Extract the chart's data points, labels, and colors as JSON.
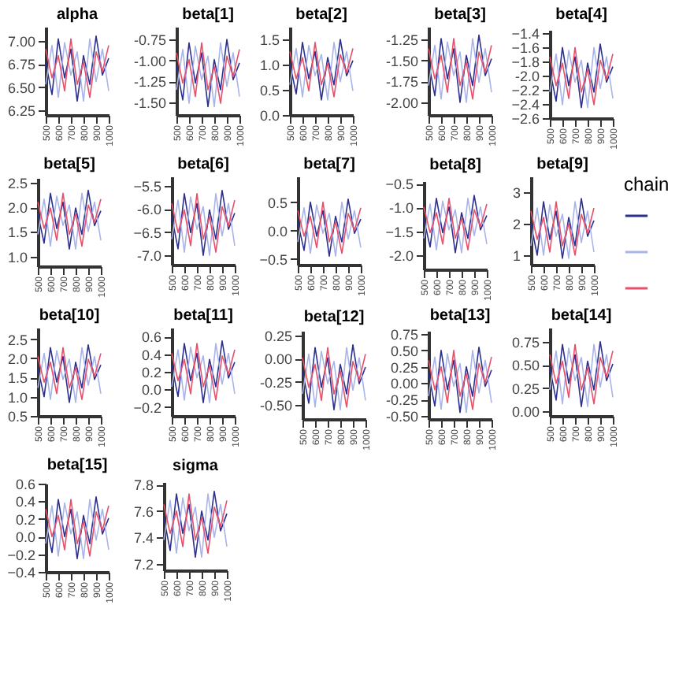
{
  "chart_data": [
    {
      "type": "line",
      "title": "alpha",
      "x": [
        500,
        550,
        600,
        650,
        700,
        750,
        800,
        850,
        900,
        950,
        1000
      ],
      "xlim": [
        500,
        1000
      ],
      "xticks": [
        500,
        600,
        700,
        800,
        900,
        1000
      ],
      "ylim": [
        6.2,
        7.15
      ],
      "yticks": [
        {
          "value": 6.25,
          "label": "6.25"
        },
        {
          "value": 6.5,
          "label": "6.50"
        },
        {
          "value": 6.75,
          "label": "6.75"
        },
        {
          "value": 7,
          "label": "7.00"
        }
      ],
      "series": [
        {
          "color": "#2b2f8f",
          "values": [
            6.77,
            6.42,
            7.02,
            6.6,
            6.91,
            6.35,
            6.84,
            6.53,
            7.05,
            6.63,
            6.81
          ]
        },
        {
          "color": "#a9b4e8",
          "values": [
            6.53,
            6.95,
            6.39,
            6.98,
            6.63,
            6.88,
            6.35,
            7.02,
            6.56,
            6.91,
            6.46
          ]
        },
        {
          "color": "#e8506a",
          "values": [
            6.91,
            6.6,
            6.84,
            6.46,
            7.02,
            6.53,
            6.77,
            6.39,
            6.88,
            6.67,
            6.95
          ]
        }
      ]
    },
    {
      "type": "line",
      "title": "beta[1]",
      "x": [
        500,
        550,
        600,
        650,
        700,
        750,
        800,
        850,
        900,
        950,
        1000
      ],
      "xlim": [
        500,
        1000
      ],
      "xticks": [
        500,
        600,
        700,
        800,
        900,
        1000
      ],
      "ylim": [
        -1.65,
        -0.6
      ],
      "yticks": [
        {
          "value": -1.5,
          "label": "-1.50"
        },
        {
          "value": -1.25,
          "label": "-1.25"
        },
        {
          "value": -1,
          "label": "-1.00"
        },
        {
          "value": -0.75,
          "label": "-0.75"
        }
      ],
      "series": [
        {
          "color": "#2b2f8f",
          "values": [
            -1.07,
            -1.47,
            -0.79,
            -1.27,
            -0.91,
            -1.55,
            -0.99,
            -1.35,
            -0.75,
            -1.23,
            -1.03
          ]
        },
        {
          "color": "#a9b4e8",
          "values": [
            -1.35,
            -0.87,
            -1.51,
            -0.83,
            -1.23,
            -0.95,
            -1.55,
            -0.79,
            -1.31,
            -0.91,
            -1.43
          ]
        },
        {
          "color": "#e8506a",
          "values": [
            -0.91,
            -1.27,
            -0.99,
            -1.43,
            -0.79,
            -1.35,
            -1.07,
            -1.51,
            -0.95,
            -1.19,
            -0.87
          ]
        }
      ]
    },
    {
      "type": "line",
      "title": "beta[2]",
      "x": [
        500,
        550,
        600,
        650,
        700,
        750,
        800,
        850,
        900,
        950,
        1000
      ],
      "xlim": [
        500,
        1000
      ],
      "xticks": [
        500,
        600,
        700,
        800,
        900,
        1000
      ],
      "ylim": [
        0,
        1.75
      ],
      "yticks": [
        {
          "value": 0,
          "label": "0.0"
        },
        {
          "value": 0.5,
          "label": "0.5"
        },
        {
          "value": 1,
          "label": "1.0"
        },
        {
          "value": 1.5,
          "label": "1.5"
        }
      ],
      "series": [
        {
          "color": "#2b2f8f",
          "values": [
            1.02,
            0.42,
            1.44,
            0.72,
            1.26,
            0.3,
            1.14,
            0.6,
            1.5,
            0.78,
            1.08
          ]
        },
        {
          "color": "#a9b4e8",
          "values": [
            0.6,
            1.32,
            0.36,
            1.38,
            0.78,
            1.2,
            0.3,
            1.44,
            0.66,
            1.26,
            0.48
          ]
        },
        {
          "color": "#e8506a",
          "values": [
            1.26,
            0.72,
            1.14,
            0.48,
            1.44,
            0.6,
            1.02,
            0.36,
            1.2,
            0.84,
            1.32
          ]
        }
      ]
    },
    {
      "type": "line",
      "title": "beta[3]",
      "x": [
        500,
        550,
        600,
        650,
        700,
        750,
        800,
        850,
        900,
        950,
        1000
      ],
      "xlim": [
        500,
        1000
      ],
      "xticks": [
        500,
        600,
        700,
        800,
        900,
        1000
      ],
      "ylim": [
        -2.15,
        -1.1
      ],
      "yticks": [
        {
          "value": -2,
          "label": "-2.00"
        },
        {
          "value": -1.75,
          "label": "-1.75"
        },
        {
          "value": -1.5,
          "label": "-1.50"
        },
        {
          "value": -1.25,
          "label": "-1.25"
        }
      ],
      "series": [
        {
          "color": "#2b2f8f",
          "values": [
            -1.52,
            -1.92,
            -1.24,
            -1.72,
            -1.36,
            -2.0,
            -1.44,
            -1.8,
            -1.2,
            -1.68,
            -1.48
          ]
        },
        {
          "color": "#a9b4e8",
          "values": [
            -1.8,
            -1.32,
            -1.96,
            -1.28,
            -1.68,
            -1.4,
            -2.0,
            -1.24,
            -1.76,
            -1.36,
            -1.88
          ]
        },
        {
          "color": "#e8506a",
          "values": [
            -1.36,
            -1.72,
            -1.44,
            -1.88,
            -1.24,
            -1.8,
            -1.52,
            -1.96,
            -1.4,
            -1.64,
            -1.32
          ]
        }
      ]
    },
    {
      "type": "line",
      "title": "beta[4]",
      "x": [
        500,
        550,
        600,
        650,
        700,
        750,
        800,
        850,
        900,
        950,
        1000
      ],
      "xlim": [
        500,
        1000
      ],
      "xticks": [
        500,
        600,
        700,
        800,
        900,
        1000
      ],
      "ylim": [
        -2.6,
        -1.35
      ],
      "yticks": [
        -2.6,
        -2.4,
        -2.2,
        {
          "value": -2,
          "label": "-2.0"
        },
        -1.8,
        -1.6,
        -1.4
      ],
      "series": [
        {
          "color": "#2b2f8f",
          "values": [
            -1.91,
            -2.36,
            -1.6,
            -2.14,
            -1.73,
            -2.45,
            -1.82,
            -2.23,
            -1.55,
            -2.09,
            -1.87
          ]
        },
        {
          "color": "#a9b4e8",
          "values": [
            -2.23,
            -1.69,
            -2.41,
            -1.64,
            -2.09,
            -1.78,
            -2.45,
            -1.6,
            -2.18,
            -1.73,
            -2.32
          ]
        },
        {
          "color": "#e8506a",
          "values": [
            -1.73,
            -2.14,
            -1.82,
            -2.32,
            -1.6,
            -2.23,
            -1.91,
            -2.41,
            -1.78,
            -2.05,
            -1.69
          ]
        }
      ]
    },
    {
      "type": "line",
      "title": "beta[5]",
      "x": [
        500,
        550,
        600,
        650,
        700,
        750,
        800,
        850,
        900,
        950,
        1000
      ],
      "xlim": [
        500,
        1000
      ],
      "xticks": [
        500,
        600,
        700,
        800,
        900,
        1000
      ],
      "ylim": [
        0.8,
        2.6
      ],
      "yticks": [
        {
          "value": 1,
          "label": "1.0"
        },
        1.5,
        {
          "value": 2,
          "label": "2.0"
        },
        2.5
      ],
      "series": [
        {
          "color": "#2b2f8f",
          "values": [
            1.87,
            1.27,
            2.29,
            1.57,
            2.11,
            1.15,
            1.99,
            1.45,
            2.35,
            1.63,
            1.93
          ]
        },
        {
          "color": "#a9b4e8",
          "values": [
            1.45,
            2.17,
            1.21,
            2.23,
            1.63,
            2.05,
            1.15,
            2.29,
            1.51,
            2.11,
            1.33
          ]
        },
        {
          "color": "#e8506a",
          "values": [
            2.11,
            1.57,
            1.99,
            1.33,
            2.29,
            1.45,
            1.87,
            1.21,
            2.05,
            1.69,
            2.17
          ]
        }
      ]
    },
    {
      "type": "line",
      "title": "beta[6]",
      "x": [
        500,
        550,
        600,
        650,
        700,
        750,
        800,
        850,
        900,
        950,
        1000
      ],
      "xlim": [
        500,
        1000
      ],
      "xticks": [
        500,
        600,
        700,
        800,
        900,
        1000
      ],
      "ylim": [
        -7.2,
        -5.3
      ],
      "yticks": [
        {
          "value": -7,
          "label": "-7.0"
        },
        -6.5,
        {
          "value": -6,
          "label": "-6.0"
        },
        -5.5
      ],
      "series": [
        {
          "color": "#2b2f8f",
          "values": [
            -6.16,
            -6.86,
            -5.67,
            -6.51,
            -5.88,
            -7.0,
            -6.02,
            -6.65,
            -5.6,
            -6.44,
            -6.09
          ]
        },
        {
          "color": "#a9b4e8",
          "values": [
            -6.65,
            -5.81,
            -6.93,
            -5.74,
            -6.44,
            -5.95,
            -7.0,
            -5.67,
            -6.58,
            -5.88,
            -6.79
          ]
        },
        {
          "color": "#e8506a",
          "values": [
            -5.88,
            -6.51,
            -6.02,
            -6.79,
            -5.67,
            -6.65,
            -6.16,
            -6.93,
            -5.95,
            -6.37,
            -5.81
          ]
        }
      ]
    },
    {
      "type": "line",
      "title": "beta[7]",
      "x": [
        500,
        550,
        600,
        650,
        700,
        750,
        800,
        850,
        900,
        950,
        1000
      ],
      "xlim": [
        500,
        1000
      ],
      "xticks": [
        500,
        600,
        700,
        800,
        900,
        1000
      ],
      "ylim": [
        -0.6,
        0.95
      ],
      "yticks": [
        -0.5,
        {
          "value": 0,
          "label": "0.0"
        },
        0.5
      ],
      "series": [
        {
          "color": "#2b2f8f",
          "values": [
            0.15,
            -0.35,
            0.5,
            -0.1,
            0.35,
            -0.45,
            0.25,
            -0.2,
            0.55,
            -0.05,
            0.2
          ]
        },
        {
          "color": "#a9b4e8",
          "values": [
            -0.2,
            0.4,
            -0.4,
            0.45,
            -0.05,
            0.3,
            -0.45,
            0.5,
            -0.15,
            0.35,
            -0.3
          ]
        },
        {
          "color": "#e8506a",
          "values": [
            0.35,
            -0.1,
            0.25,
            -0.3,
            0.5,
            -0.2,
            0.15,
            -0.4,
            0.3,
            0.0,
            0.4
          ]
        }
      ]
    },
    {
      "type": "line",
      "title": "beta[8]",
      "x": [
        500,
        550,
        600,
        650,
        700,
        750,
        800,
        850,
        900,
        950,
        1000
      ],
      "xlim": [
        500,
        1000
      ],
      "xticks": [
        500,
        600,
        700,
        800,
        900,
        1000
      ],
      "ylim": [
        -2.3,
        -0.45
      ],
      "yticks": [
        {
          "value": -2,
          "label": "-2.0"
        },
        -1.5,
        {
          "value": -1,
          "label": "-1.0"
        },
        -0.5
      ],
      "series": [
        {
          "color": "#2b2f8f",
          "values": [
            -1.23,
            -1.83,
            -0.81,
            -1.53,
            -0.99,
            -1.95,
            -1.11,
            -1.65,
            -0.75,
            -1.47,
            -1.17
          ]
        },
        {
          "color": "#a9b4e8",
          "values": [
            -1.65,
            -0.93,
            -1.89,
            -0.87,
            -1.47,
            -1.05,
            -1.95,
            -0.81,
            -1.59,
            -0.99,
            -1.77
          ]
        },
        {
          "color": "#e8506a",
          "values": [
            -0.99,
            -1.53,
            -1.11,
            -1.77,
            -0.81,
            -1.65,
            -1.23,
            -1.89,
            -1.05,
            -1.41,
            -0.93
          ]
        }
      ]
    },
    {
      "type": "line",
      "title": "beta[9]",
      "legend_title": "chain",
      "x": [
        500,
        550,
        600,
        650,
        700,
        750,
        800,
        850,
        900,
        950,
        1000
      ],
      "xlim": [
        500,
        1000
      ],
      "xticks": [
        500,
        600,
        700,
        800,
        900,
        1000
      ],
      "ylim": [
        0.7,
        3.5
      ],
      "yticks": [
        1,
        2,
        3
      ],
      "series": [
        {
          "color": "#2b2f8f",
          "values": [
            2.0,
            1.0,
            2.7,
            1.5,
            2.4,
            0.9,
            2.2,
            1.3,
            2.8,
            1.6,
            2.1
          ]
        },
        {
          "color": "#a9b4e8",
          "values": [
            1.3,
            2.5,
            1.0,
            2.6,
            1.6,
            2.3,
            0.9,
            2.7,
            1.4,
            2.4,
            1.1
          ]
        },
        {
          "color": "#e8506a",
          "values": [
            2.4,
            1.5,
            2.2,
            1.1,
            2.7,
            1.3,
            2.0,
            1.0,
            2.3,
            1.7,
            2.5
          ]
        }
      ]
    },
    {
      "type": "line",
      "title": "beta[10]",
      "x": [
        500,
        550,
        600,
        650,
        700,
        750,
        800,
        850,
        900,
        950,
        1000
      ],
      "xlim": [
        500,
        1000
      ],
      "xticks": [
        500,
        600,
        700,
        800,
        900,
        1000
      ],
      "ylim": [
        0.5,
        2.8
      ],
      "yticks": [
        0.5,
        {
          "value": 1,
          "label": "1.0"
        },
        1.5,
        {
          "value": 2,
          "label": "2.0"
        },
        2.5
      ],
      "series": [
        {
          "color": "#2b2f8f",
          "values": [
            1.75,
            1.0,
            2.28,
            1.38,
            2.05,
            0.85,
            1.9,
            1.23,
            2.35,
            1.45,
            1.83
          ]
        },
        {
          "color": "#a9b4e8",
          "values": [
            1.23,
            2.13,
            0.93,
            2.2,
            1.45,
            1.98,
            0.85,
            2.28,
            1.3,
            2.05,
            1.08
          ]
        },
        {
          "color": "#e8506a",
          "values": [
            2.05,
            1.38,
            1.9,
            1.08,
            2.28,
            1.23,
            1.75,
            0.93,
            1.98,
            1.53,
            2.13
          ]
        }
      ]
    },
    {
      "type": "line",
      "title": "beta[11]",
      "x": [
        500,
        550,
        600,
        650,
        700,
        750,
        800,
        850,
        900,
        950,
        1000
      ],
      "xlim": [
        500,
        1000
      ],
      "xticks": [
        500,
        600,
        700,
        800,
        900,
        1000
      ],
      "ylim": [
        -0.3,
        0.7
      ],
      "yticks": [
        -0.2,
        {
          "value": 0,
          "label": "0.0"
        },
        0.2,
        0.4,
        0.6
      ],
      "series": [
        {
          "color": "#2b2f8f",
          "values": [
            0.27,
            -0.08,
            0.52,
            0.1,
            0.41,
            -0.15,
            0.34,
            0.03,
            0.55,
            0.13,
            0.31
          ]
        },
        {
          "color": "#a9b4e8",
          "values": [
            0.03,
            0.45,
            -0.12,
            0.48,
            0.13,
            0.38,
            -0.15,
            0.52,
            0.06,
            0.41,
            -0.05
          ]
        },
        {
          "color": "#e8506a",
          "values": [
            0.41,
            0.1,
            0.34,
            -0.05,
            0.52,
            0.03,
            0.27,
            -0.12,
            0.38,
            0.17,
            0.45
          ]
        }
      ]
    },
    {
      "type": "line",
      "title": "beta[12]",
      "x": [
        500,
        550,
        600,
        650,
        700,
        750,
        800,
        850,
        900,
        950,
        1000
      ],
      "xlim": [
        500,
        1000
      ],
      "xticks": [
        500,
        600,
        700,
        800,
        900,
        1000
      ],
      "ylim": [
        -0.65,
        0.3
      ],
      "yticks": [
        {
          "value": -0.5,
          "label": "-0.50"
        },
        {
          "value": -0.25,
          "label": "-0.25"
        },
        {
          "value": 0,
          "label": "0.00"
        },
        {
          "value": 0.25,
          "label": "0.25"
        }
      ],
      "series": [
        {
          "color": "#2b2f8f",
          "values": [
            -0.13,
            -0.48,
            0.12,
            -0.31,
            0.01,
            -0.55,
            -0.06,
            -0.38,
            0.15,
            -0.27,
            -0.09
          ]
        },
        {
          "color": "#a9b4e8",
          "values": [
            -0.38,
            0.05,
            -0.52,
            0.08,
            -0.27,
            -0.03,
            -0.55,
            0.12,
            -0.34,
            0.01,
            -0.45
          ]
        },
        {
          "color": "#e8506a",
          "values": [
            0.01,
            -0.31,
            -0.06,
            -0.45,
            0.12,
            -0.38,
            -0.13,
            -0.52,
            -0.03,
            -0.23,
            0.05
          ]
        }
      ]
    },
    {
      "type": "line",
      "title": "beta[13]",
      "x": [
        500,
        550,
        600,
        650,
        700,
        750,
        800,
        850,
        900,
        950,
        1000
      ],
      "xlim": [
        500,
        1000
      ],
      "xticks": [
        500,
        600,
        700,
        800,
        900,
        1000
      ],
      "ylim": [
        -0.55,
        0.8
      ],
      "yticks": [
        {
          "value": -0.5,
          "label": "-0.50"
        },
        {
          "value": -0.25,
          "label": "-0.25"
        },
        {
          "value": 0,
          "label": "0.00"
        },
        {
          "value": 0.25,
          "label": "0.25"
        },
        {
          "value": 0.5,
          "label": "0.50"
        },
        {
          "value": 0.75,
          "label": "0.75"
        }
      ],
      "series": [
        {
          "color": "#2b2f8f",
          "values": [
            0.15,
            -0.35,
            0.5,
            -0.1,
            0.35,
            -0.45,
            0.25,
            -0.2,
            0.55,
            -0.05,
            0.2
          ]
        },
        {
          "color": "#a9b4e8",
          "values": [
            -0.2,
            0.4,
            -0.4,
            0.45,
            -0.05,
            0.3,
            -0.45,
            0.5,
            -0.15,
            0.35,
            -0.3
          ]
        },
        {
          "color": "#e8506a",
          "values": [
            0.35,
            -0.1,
            0.25,
            -0.3,
            0.5,
            -0.2,
            0.15,
            -0.4,
            0.3,
            0.0,
            0.4
          ]
        }
      ]
    },
    {
      "type": "line",
      "title": "beta[14]",
      "x": [
        500,
        550,
        600,
        650,
        700,
        750,
        800,
        850,
        900,
        950,
        1000
      ],
      "xlim": [
        500,
        1000
      ],
      "xticks": [
        500,
        600,
        700,
        800,
        900,
        1000
      ],
      "ylim": [
        -0.05,
        0.9
      ],
      "yticks": [
        {
          "value": 0,
          "label": "0.00"
        },
        {
          "value": 0.25,
          "label": "0.25"
        },
        {
          "value": 0.5,
          "label": "0.50"
        },
        {
          "value": 0.75,
          "label": "0.75"
        }
      ],
      "series": [
        {
          "color": "#2b2f8f",
          "values": [
            0.47,
            0.12,
            0.72,
            0.3,
            0.61,
            0.05,
            0.54,
            0.23,
            0.75,
            0.33,
            0.51
          ]
        },
        {
          "color": "#a9b4e8",
          "values": [
            0.23,
            0.65,
            0.08,
            0.68,
            0.33,
            0.58,
            0.05,
            0.72,
            0.26,
            0.61,
            0.15
          ]
        },
        {
          "color": "#e8506a",
          "values": [
            0.61,
            0.3,
            0.54,
            0.15,
            0.72,
            0.23,
            0.47,
            0.08,
            0.58,
            0.37,
            0.65
          ]
        }
      ]
    },
    {
      "type": "line",
      "title": "beta[15]",
      "x": [
        500,
        550,
        600,
        650,
        700,
        750,
        800,
        850,
        900,
        950,
        1000
      ],
      "xlim": [
        500,
        1000
      ],
      "xticks": [
        500,
        600,
        700,
        800,
        900,
        1000
      ],
      "ylim": [
        -0.4,
        0.6
      ],
      "yticks": [
        -0.4,
        -0.2,
        {
          "value": 0,
          "label": "0.0"
        },
        0.2,
        0.4,
        0.6
      ],
      "series": [
        {
          "color": "#2b2f8f",
          "values": [
            0.17,
            -0.18,
            0.42,
            0.0,
            0.31,
            -0.25,
            0.24,
            -0.08,
            0.45,
            0.03,
            0.21
          ]
        },
        {
          "color": "#a9b4e8",
          "values": [
            -0.08,
            0.35,
            -0.22,
            0.38,
            0.03,
            0.28,
            -0.25,
            0.42,
            -0.04,
            0.31,
            -0.15
          ]
        },
        {
          "color": "#e8506a",
          "values": [
            0.31,
            0.0,
            0.24,
            -0.15,
            0.42,
            -0.08,
            0.17,
            -0.22,
            0.28,
            0.07,
            0.35
          ]
        }
      ]
    },
    {
      "type": "line",
      "title": "sigma",
      "x": [
        500,
        550,
        600,
        650,
        700,
        750,
        800,
        850,
        900,
        950,
        1000
      ],
      "xlim": [
        500,
        1000
      ],
      "xticks": [
        500,
        600,
        700,
        800,
        900,
        1000
      ],
      "ylim": [
        7.15,
        7.82
      ],
      "yticks": [
        7.2,
        7.4,
        7.6,
        7.8
      ],
      "series": [
        {
          "color": "#2b2f8f",
          "values": [
            7.55,
            7.3,
            7.73,
            7.43,
            7.65,
            7.25,
            7.6,
            7.38,
            7.75,
            7.45,
            7.58
          ]
        },
        {
          "color": "#a9b4e8",
          "values": [
            7.38,
            7.68,
            7.28,
            7.7,
            7.45,
            7.63,
            7.25,
            7.73,
            7.4,
            7.65,
            7.33
          ]
        },
        {
          "color": "#e8506a",
          "values": [
            7.65,
            7.43,
            7.6,
            7.33,
            7.73,
            7.38,
            7.55,
            7.28,
            7.63,
            7.48,
            7.68
          ]
        }
      ]
    }
  ]
}
